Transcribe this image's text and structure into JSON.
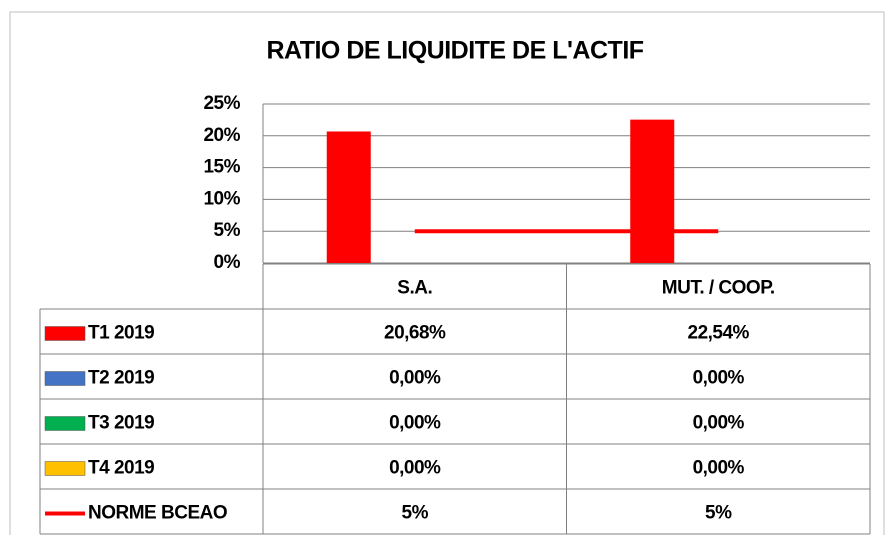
{
  "chart_data": {
    "type": "bar",
    "title": "RATIO DE LIQUIDITE DE L'ACTIF",
    "categories": [
      "S.A.",
      "MUT. / COOP."
    ],
    "series": [
      {
        "name": "T1 2019",
        "color": "#ff0000",
        "values": [
          20.68,
          22.54
        ],
        "value_labels": [
          "20,68%",
          "22,54%"
        ]
      },
      {
        "name": "T2 2019",
        "color": "#4472c4",
        "values": [
          0,
          0
        ],
        "value_labels": [
          "0,00%",
          "0,00%"
        ]
      },
      {
        "name": "T3 2019",
        "color": "#00b050",
        "values": [
          0,
          0
        ],
        "value_labels": [
          "0,00%",
          "0,00%"
        ]
      },
      {
        "name": "T4 2019",
        "color": "#ffc000",
        "values": [
          0,
          0
        ],
        "value_labels": [
          "0,00%",
          "0,00%"
        ]
      },
      {
        "name": "NORME BCEAO",
        "color": "#ff0000",
        "type": "line",
        "values": [
          5,
          5
        ],
        "value_labels": [
          "5%",
          "5%"
        ]
      }
    ],
    "ylim": [
      0,
      25
    ],
    "yticks": [
      {
        "value": 0,
        "label": "0%"
      },
      {
        "value": 5,
        "label": "5%"
      },
      {
        "value": 10,
        "label": "10%"
      },
      {
        "value": 15,
        "label": "15%"
      },
      {
        "value": 20,
        "label": "20%"
      },
      {
        "value": 25,
        "label": "25%"
      }
    ],
    "grid": true
  }
}
